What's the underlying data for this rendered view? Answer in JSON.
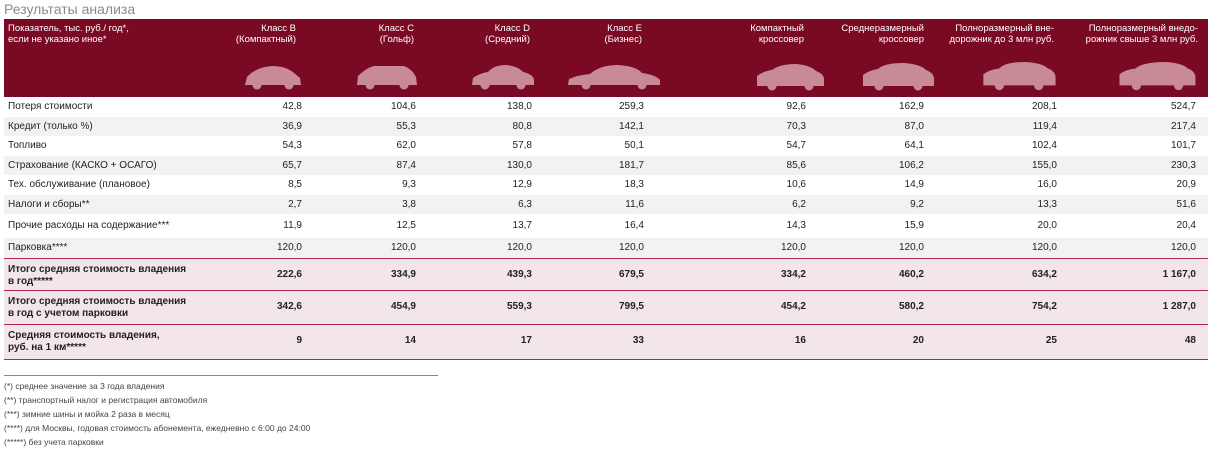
{
  "page_title": "Результаты анализа",
  "header": {
    "indicator": "Показатель, тыс. руб./ год*,\nесли не указано иное*",
    "columns": [
      {
        "name": "Класс B",
        "sub": "(Компактный)"
      },
      {
        "name": "Класс C",
        "sub": "(Гольф)"
      },
      {
        "name": "Класс D",
        "sub": "(Средний)"
      },
      {
        "name": "Класс E",
        "sub": "(Бизнес)"
      },
      {
        "name": "Компактный",
        "sub": "кроссовер"
      },
      {
        "name": "Среднеразмерный",
        "sub": "кроссовер"
      },
      {
        "name": "Полноразмерный вне-",
        "sub": "дорожник до 3 млн руб."
      },
      {
        "name": "Полноразмерный внедо-",
        "sub": "рожник свыше 3 млн руб."
      }
    ]
  },
  "rows": [
    {
      "label": "Потеря стоимости",
      "values": [
        "42,8",
        "104,6",
        "138,0",
        "259,3",
        "92,6",
        "162,9",
        "208,1",
        "524,7"
      ]
    },
    {
      "label": "Кредит (только %)",
      "values": [
        "36,9",
        "55,3",
        "80,8",
        "142,1",
        "70,3",
        "87,0",
        "119,4",
        "217,4"
      ]
    },
    {
      "label": "Топливо",
      "values": [
        "54,3",
        "62,0",
        "57,8",
        "50,1",
        "54,7",
        "64,1",
        "102,4",
        "101,7"
      ]
    },
    {
      "label": "Страхование (КАСКО + ОСАГО)",
      "values": [
        "65,7",
        "87,4",
        "130,0",
        "181,7",
        "85,6",
        "106,2",
        "155,0",
        "230,3"
      ]
    },
    {
      "label": "Тех. обслуживание (плановое)",
      "values": [
        "8,5",
        "9,3",
        "12,9",
        "18,3",
        "10,6",
        "14,9",
        "16,0",
        "20,9"
      ]
    },
    {
      "label": "Налоги и сборы**",
      "values": [
        "2,7",
        "3,8",
        "6,3",
        "11,6",
        "6,2",
        "9,2",
        "13,3",
        "51,6"
      ]
    },
    {
      "label": "Прочие расходы на содержание***",
      "values": [
        "11,9",
        "12,5",
        "13,7",
        "16,4",
        "14,3",
        "15,9",
        "20,0",
        "20,4"
      ]
    },
    {
      "label": "Парковка****",
      "values": [
        "120,0",
        "120,0",
        "120,0",
        "120,0",
        "120,0",
        "120,0",
        "120,0",
        "120,0"
      ]
    }
  ],
  "totals": [
    {
      "label1": "Итого средняя стоимость владения",
      "label2": "в год*****",
      "values": [
        "222,6",
        "334,9",
        "439,3",
        "679,5",
        "334,2",
        "460,2",
        "634,2",
        "1 167,0"
      ]
    },
    {
      "label1": "Итого средняя стоимость владения",
      "label2": "в год с учетом парковки",
      "values": [
        "342,6",
        "454,9",
        "559,3",
        "799,5",
        "454,2",
        "580,2",
        "754,2",
        "1 287,0"
      ]
    },
    {
      "label1": "Средняя стоимость владения,",
      "label2": "руб. на 1 км*****",
      "values": [
        "9",
        "14",
        "17",
        "33",
        "16",
        "20",
        "25",
        "48"
      ]
    }
  ],
  "notes": [
    "(*) среднее значение за 3 года владения",
    "(**) транспортный налог и регистрация автомобиля",
    "(***) зимние шины и мойка 2 раза в месяц",
    "(****) для Москвы, годовая стоимость абонемента, ежедневно с 6:00 до 24:00",
    "(*****) без учета парковки"
  ],
  "icons": [
    "car-hatchback-icon",
    "car-golf-icon",
    "car-sedan-icon",
    "car-business-icon",
    "car-compact-crossover-icon",
    "car-mid-crossover-icon",
    "car-suv-icon",
    "car-large-suv-icon"
  ],
  "colors": {
    "header_bg": "#7a0a24",
    "car_silhouette": "#c98a98",
    "total_bg": "#f3e6ea",
    "total_border": "#b22a4a"
  }
}
